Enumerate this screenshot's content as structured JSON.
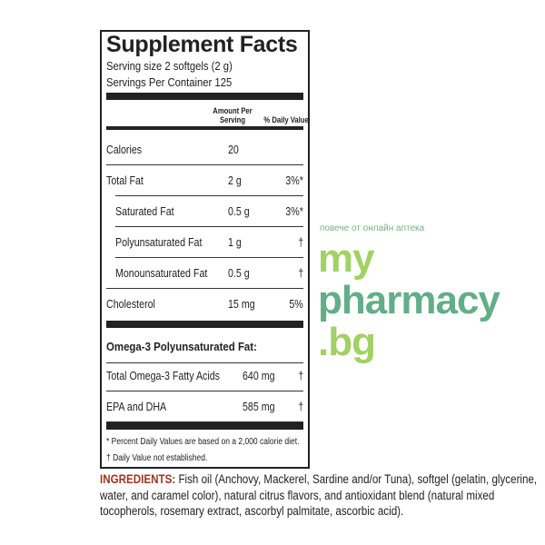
{
  "panel": {
    "title": "Supplement Facts",
    "serving_size": "Serving size 2 softgels (2 g)",
    "servings_per_container": "Servings Per Container 125",
    "header_amount_line1": "Amount Per",
    "header_amount_line2": "Serving",
    "header_dv": "% Daily Value",
    "rows": [
      {
        "name": "Calories",
        "amount": "20",
        "dv": ""
      },
      {
        "name": "Total Fat",
        "amount": "2 g",
        "dv": "3%*"
      },
      {
        "name": "Saturated Fat",
        "amount": "0.5 g",
        "dv": "3%*"
      },
      {
        "name": "Polyunsaturated Fat",
        "amount": "1 g",
        "dv": "†"
      },
      {
        "name": "Monounsaturated Fat",
        "amount": "0.5 g",
        "dv": "†"
      },
      {
        "name": "Cholesterol",
        "amount": "15 mg",
        "dv": "5%"
      }
    ],
    "omega_header": "Omega-3 Polyunsaturated Fat:",
    "omega_rows": [
      {
        "name": "Total Omega-3 Fatty Acids",
        "amount": "640 mg",
        "dv": "†"
      },
      {
        "name": "EPA and DHA",
        "amount": "585 mg",
        "dv": "†"
      }
    ],
    "footnote1": "* Percent Daily Values are based on a 2,000 calorie diet.",
    "footnote2": "† Daily Value not established."
  },
  "ingredients": {
    "label": "INGREDIENTS:",
    "text": " Fish oil (Anchovy, Mackerel, Sardine and/or Tuna), softgel (gelatin, glycerine, water, and caramel color), natural citrus flavors, and antioxidant blend (natural mixed tocopherols, rosemary extract, ascorbyl palmitate, ascorbic acid)."
  },
  "watermark": {
    "part1": "my",
    "part2": "pharmacy",
    "part3": ".bg",
    "tagline": "повече от онлайн аптека",
    "colors": {
      "light": "#8cc63e",
      "dark": "#3b9a6b"
    }
  },
  "colors": {
    "ingredients_label": "#a0341f"
  }
}
